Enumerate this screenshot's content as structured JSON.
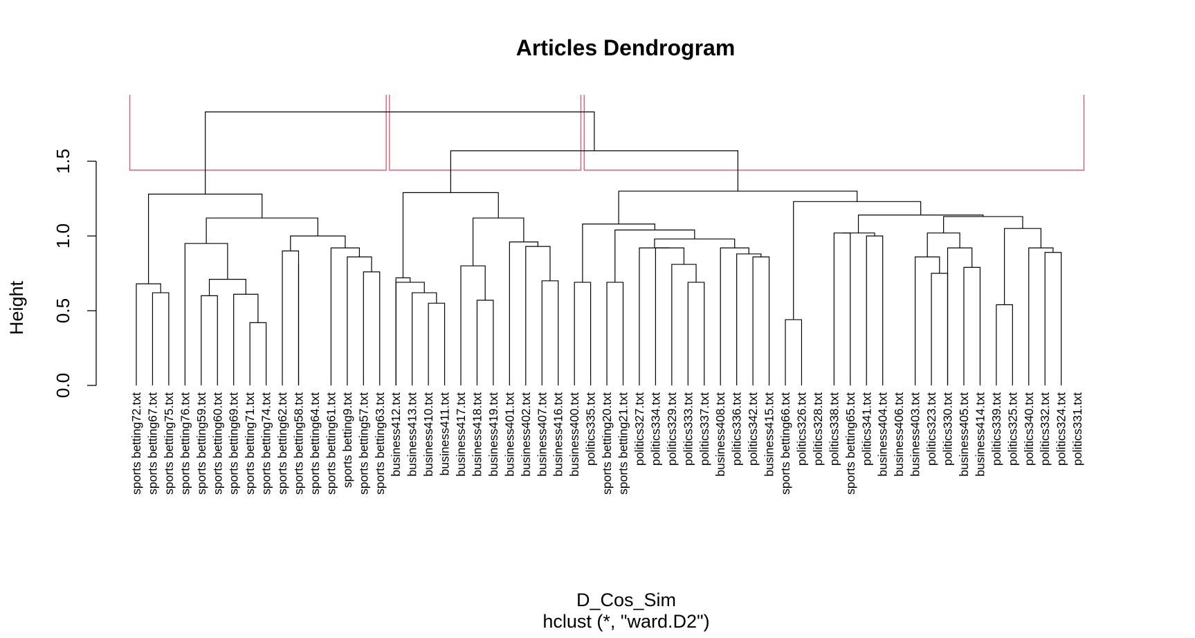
{
  "chart_data": {
    "type": "dendrogram",
    "title": "Articles Dendrogram",
    "xlabel": "D_Cos_Sim",
    "sub": "hclust (*, \"ward.D2\")",
    "ylabel": "Height",
    "ylim": [
      0,
      1.95
    ],
    "yticks": [
      0.0,
      0.5,
      1.0,
      1.5
    ],
    "ytick_labels": [
      "0.0",
      "0.5",
      "1.0",
      "1.5"
    ],
    "cut_height": 1.44,
    "cut_color": "#DF536B",
    "line_color": "#000000",
    "leaves": [
      "sports betting72.txt",
      "sports betting67.txt",
      "sports betting75.txt",
      "sports betting76.txt",
      "sports betting59.txt",
      "sports betting60.txt",
      "sports betting69.txt",
      "sports betting71.txt",
      "sports betting74.txt",
      "sports betting62.txt",
      "sports betting58.txt",
      "sports betting64.txt",
      "sports betting61.txt",
      "sports betting9.txt",
      "sports betting57.txt",
      "sports betting63.txt",
      "business412.txt",
      "business413.txt",
      "business410.txt",
      "business411.txt",
      "business417.txt",
      "business418.txt",
      "business419.txt",
      "business401.txt",
      "business402.txt",
      "business407.txt",
      "business416.txt",
      "business400.txt",
      "politics335.txt",
      "sports betting20.txt",
      "sports betting21.txt",
      "politics327.txt",
      "politics334.txt",
      "politics329.txt",
      "politics333.txt",
      "politics337.txt",
      "business408.txt",
      "politics336.txt",
      "politics342.txt",
      "business415.txt",
      "sports betting66.txt",
      "politics326.txt",
      "politics328.txt",
      "politics338.txt",
      "sports betting65.txt",
      "politics341.txt",
      "business404.txt",
      "business406.txt",
      "business403.txt",
      "politics323.txt",
      "politics330.txt",
      "business405.txt",
      "business414.txt",
      "politics339.txt",
      "politics325.txt",
      "politics340.txt",
      "politics332.txt",
      "politics324.txt",
      "politics331.txt"
    ],
    "merges": [
      {
        "a": [
          1
        ],
        "b": [
          2
        ],
        "h": 0.62
      },
      {
        "a": [
          0
        ],
        "b": [
          "m0"
        ],
        "h": 0.68
      },
      {
        "a": [
          7
        ],
        "b": [
          8
        ],
        "h": 0.42
      },
      {
        "a": [
          6
        ],
        "b": [
          "m2"
        ],
        "h": 0.61
      },
      {
        "a": [
          4
        ],
        "b": [
          5
        ],
        "h": 0.6
      },
      {
        "a": [
          "m4"
        ],
        "b": [
          "m3"
        ],
        "h": 0.71
      },
      {
        "a": [
          3
        ],
        "b": [
          "m5"
        ],
        "h": 0.95
      },
      {
        "a": [
          9
        ],
        "b": [
          10
        ],
        "h": 0.9
      },
      {
        "a": [
          10
        ],
        "b": [
          10
        ],
        "h": 0.81
      },
      {
        "a": [
          14
        ],
        "b": [
          15
        ],
        "h": 0.76
      },
      {
        "a": [
          13
        ],
        "b": [
          "m9"
        ],
        "h": 0.86
      },
      {
        "a": [
          12
        ],
        "b": [
          "m10"
        ],
        "h": 0.92
      },
      {
        "a": [
          "m7"
        ],
        "b": [
          "m11"
        ],
        "h": 1.0
      },
      {
        "a": [
          "m6"
        ],
        "b": [
          "m12"
        ],
        "h": 1.12
      },
      {
        "a": [
          "m1"
        ],
        "b": [
          "m13"
        ],
        "h": 1.28
      },
      {
        "a": [
          18
        ],
        "b": [
          19
        ],
        "h": 0.55
      },
      {
        "a": [
          17
        ],
        "b": [
          "m15"
        ],
        "h": 0.62
      },
      {
        "a": [
          16
        ],
        "b": [
          "m16"
        ],
        "h": 0.69
      },
      {
        "a": [
          16
        ],
        "b": [
          "m17"
        ],
        "h": 0.72
      },
      {
        "a": [
          21
        ],
        "b": [
          22
        ],
        "h": 0.57
      },
      {
        "a": [
          20
        ],
        "b": [
          "m19"
        ],
        "h": 0.8
      },
      {
        "a": [
          25
        ],
        "b": [
          26
        ],
        "h": 0.7
      },
      {
        "a": [
          24
        ],
        "b": [
          "m21"
        ],
        "h": 0.93
      },
      {
        "a": [
          23
        ],
        "b": [
          "m22"
        ],
        "h": 0.96
      },
      {
        "a": [
          "m20"
        ],
        "b": [
          "m23"
        ],
        "h": 1.12
      },
      {
        "a": [
          "m18"
        ],
        "b": [
          "m24"
        ],
        "h": 1.29
      },
      {
        "a": [
          27
        ],
        "b": [
          28
        ],
        "h": 0.69
      },
      {
        "a": [
          29
        ],
        "b": [
          30
        ],
        "h": 0.69
      },
      {
        "a": [
          34
        ],
        "b": [
          35
        ],
        "h": 0.69
      },
      {
        "a": [
          33
        ],
        "b": [
          "m28"
        ],
        "h": 0.81
      },
      {
        "a": [
          32
        ],
        "b": [
          "m29"
        ],
        "h": 0.92
      },
      {
        "a": [
          31
        ],
        "b": [
          "m30"
        ],
        "h": 0.92
      },
      {
        "a": [
          38
        ],
        "b": [
          39
        ],
        "h": 0.86
      },
      {
        "a": [
          37
        ],
        "b": [
          "m32"
        ],
        "h": 0.88
      },
      {
        "a": [
          36
        ],
        "b": [
          "m33"
        ],
        "h": 0.92
      },
      {
        "a": [
          "m31"
        ],
        "b": [
          "m34"
        ],
        "h": 0.98
      },
      {
        "a": [
          "m27"
        ],
        "b": [
          "m35"
        ],
        "h": 1.04
      },
      {
        "a": [
          "m26"
        ],
        "b": [
          "m36"
        ],
        "h": 1.08
      },
      {
        "a": [
          40
        ],
        "b": [
          41
        ],
        "h": 0.44
      },
      {
        "a": [
          43
        ],
        "b": [
          44
        ],
        "h": 1.02
      },
      {
        "a": [
          45
        ],
        "b": [
          46
        ],
        "h": 1.0
      },
      {
        "a": [
          "m39"
        ],
        "b": [
          "m40"
        ],
        "h": 1.02
      },
      {
        "a": [
          49
        ],
        "b": [
          50
        ],
        "h": 0.75
      },
      {
        "a": [
          48
        ],
        "b": [
          "m42"
        ],
        "h": 0.86
      },
      {
        "a": [
          51
        ],
        "b": [
          52
        ],
        "h": 0.79
      },
      {
        "a": [
          50
        ],
        "b": [
          "m44"
        ],
        "h": 0.92
      },
      {
        "a": [
          "m43"
        ],
        "b": [
          "m45"
        ],
        "h": 1.02
      },
      {
        "a": [
          53
        ],
        "b": [
          54
        ],
        "h": 0.54
      },
      {
        "a": [
          56
        ],
        "b": [
          57
        ],
        "h": 0.89
      },
      {
        "a": [
          55
        ],
        "b": [
          "m48"
        ],
        "h": 0.92
      },
      {
        "a": [
          "m47"
        ],
        "b": [
          "m49"
        ],
        "h": 1.05
      },
      {
        "a": [
          "m46"
        ],
        "b": [
          "m50"
        ],
        "h": 1.13
      },
      {
        "a": [
          "m41"
        ],
        "b": [
          "m51"
        ],
        "h": 1.14
      },
      {
        "a": [
          "m38"
        ],
        "b": [
          "m52"
        ],
        "h": 1.23
      },
      {
        "a": [
          "m37"
        ],
        "b": [
          "m53"
        ],
        "h": 1.3
      },
      {
        "a": [
          "m25"
        ],
        "b": [
          "m54"
        ],
        "h": 1.57
      },
      {
        "a": [
          "m14"
        ],
        "b": [
          "m55"
        ],
        "h": 1.83
      }
    ],
    "cluster_boxes": [
      {
        "from": 0,
        "to": 15
      },
      {
        "from": 16,
        "to": 27
      },
      {
        "from": 28,
        "to": 58
      }
    ]
  }
}
